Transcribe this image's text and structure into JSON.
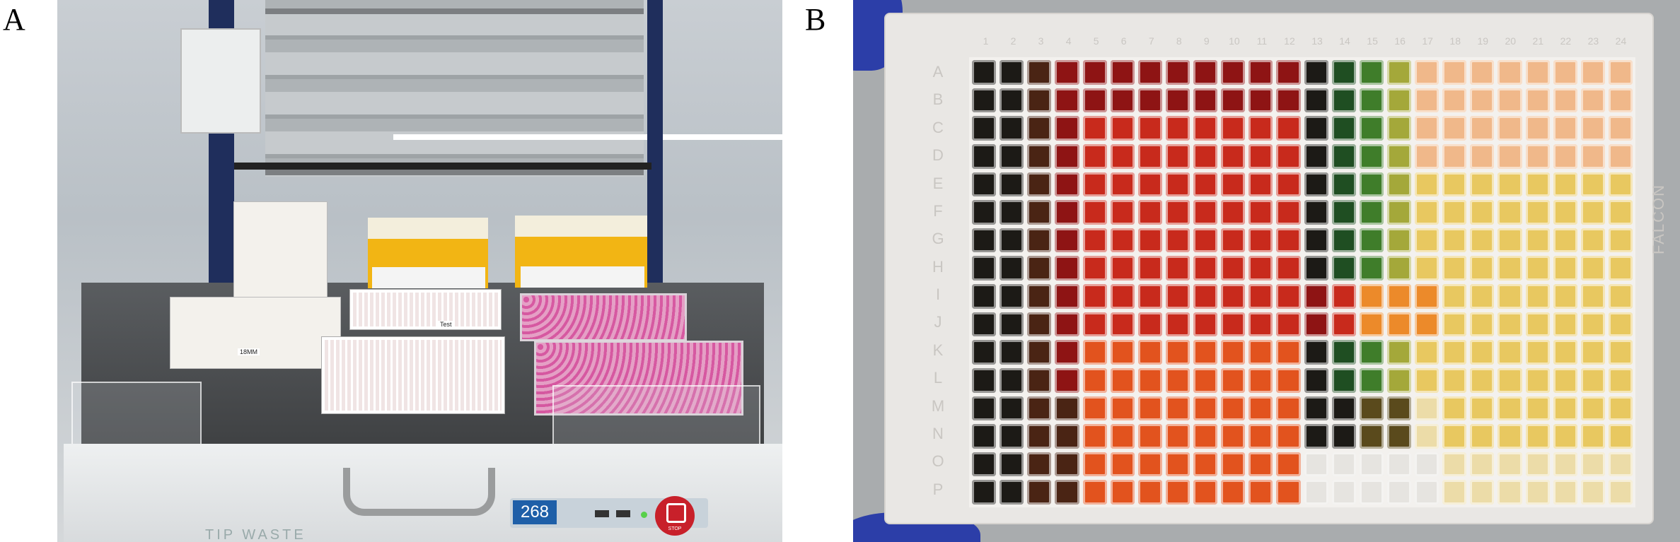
{
  "panels": {
    "a": {
      "label": "A",
      "instrument": {
        "unit_number": "268",
        "stop_label": "STOP",
        "tip_waste_label": "TIP WASTE",
        "adapter_label": "18MM",
        "plate_label": "Test"
      }
    },
    "b": {
      "label": "B",
      "plate": {
        "brand": "FALCON",
        "column_labels": [
          "1",
          "2",
          "3",
          "4",
          "5",
          "6",
          "7",
          "8",
          "9",
          "10",
          "11",
          "12",
          "13",
          "14",
          "15",
          "16",
          "17",
          "18",
          "19",
          "20",
          "21",
          "22",
          "23",
          "24"
        ],
        "row_labels": [
          "A",
          "B",
          "C",
          "D",
          "E",
          "F",
          "G",
          "H",
          "I",
          "J",
          "K",
          "L",
          "M",
          "N",
          "O",
          "P"
        ],
        "well_palette": {
          "K": "#1c1a16",
          "B": "#4a2414",
          "M": "#8e1414",
          "R": "#c82a1c",
          "O": "#e2531e",
          "G": "#1f4e22",
          "g": "#3f7d2a",
          "l": "#a4a83a",
          "A": "#ec8a2a",
          "D": "#5a4a1c",
          "Y": "#e8c860",
          "y": "#ecdca8",
          "P": "#f0b88a",
          "C": "#e6e4e0"
        },
        "well_colors": [
          "KKBMMMMMMMMMKGglPPPPPPPP",
          "KKBMMMMMMMMMKGglPPPPPPPP",
          "KKBMRRRRRRRRKGglPPPPPPPP",
          "KKBMRRRRRRRRKGglPPPPPPPP",
          "KKBMRRRRRRRRKGglYYYYYYYY",
          "KKBMRRRRRRRRKGglYYYYYYYY",
          "KKBMRRRRRRRRKGglYYYYYYYY",
          "KKBMRRRRRRRRKGglYYYYYYYY",
          "KKBMRRRRRRRRMRAAAYYYYYYY",
          "KKBMRRRRRRRRMRAAAYYYYYYY",
          "KKBMOOOOOOOOKGglYYYYYYYY",
          "KKBMOOOOOOOOKGglYYYYYYYY",
          "KKBBOOOOOOOOKKDDyYYYYYYY",
          "KKBBOOOOOOOOKKDDyYYYYYYY",
          "KKBBOOOOOOOOCCCCCyyyyyyy",
          "KKBBOOOOOOOOCCCCCyyyyyyy"
        ]
      }
    }
  }
}
